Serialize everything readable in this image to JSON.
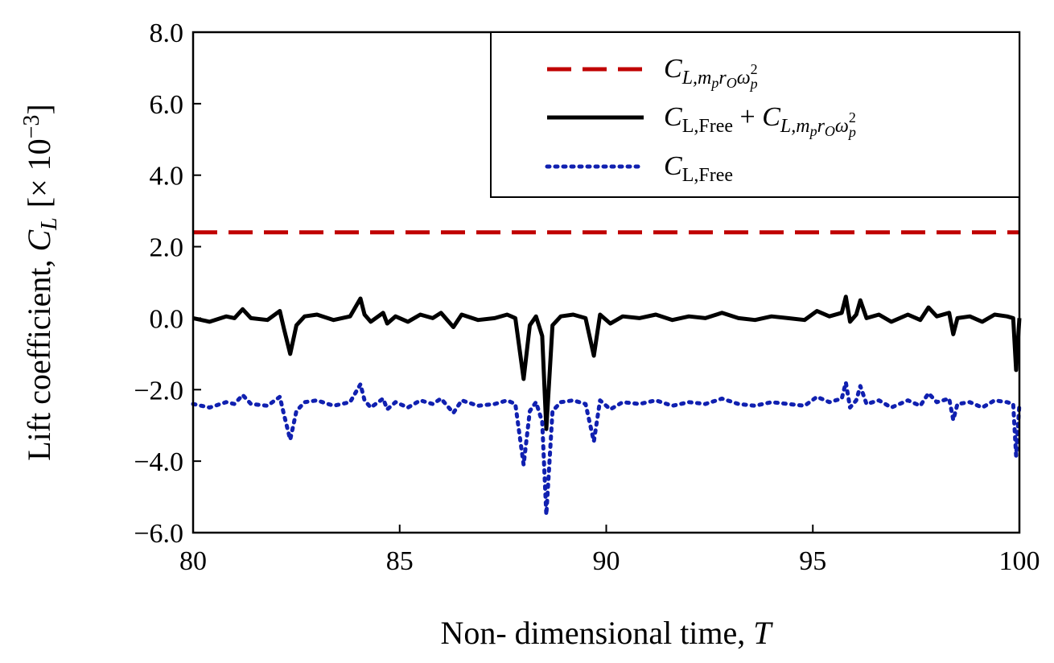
{
  "chart_data": {
    "type": "line",
    "xlabel": "Non- dimensional time, ",
    "xlabel_symbol": "T",
    "ylabel": "Lift coefficient, ",
    "ylabel_symbol": "C",
    "ylabel_sub": "L",
    "ylabel_scale": "[× 10",
    "ylabel_scale_exp": "−3",
    "ylabel_scale_close": "]",
    "xlim": [
      80,
      100
    ],
    "ylim": [
      -6.0,
      8.0
    ],
    "xticks": [
      {
        "value": 80,
        "label": "80"
      },
      {
        "value": 85,
        "label": "85"
      },
      {
        "value": 90,
        "label": "90"
      },
      {
        "value": 95,
        "label": "95"
      },
      {
        "value": 100,
        "label": "100"
      }
    ],
    "yticks": [
      {
        "value": 8,
        "label": "8.0"
      },
      {
        "value": 6,
        "label": "6.0"
      },
      {
        "value": 4,
        "label": "4.0"
      },
      {
        "value": 2,
        "label": "2.0"
      },
      {
        "value": 0,
        "label": "0.0"
      },
      {
        "value": -2,
        "label": "−2.0"
      },
      {
        "value": -4,
        "label": "−4.0"
      },
      {
        "value": -6,
        "label": "−6.0"
      }
    ],
    "legend": {
      "position": "top-right",
      "entries": [
        {
          "series": "CL_mprw",
          "sym": "C",
          "sub": "L,m",
          "sub2": "p",
          "sub3": "r",
          "sub4": "O",
          "sub5": "ω",
          "sub6": "p",
          "sup6": "2"
        },
        {
          "series": "CL_total",
          "sym": "C",
          "sub": "L,Free",
          "plus": " + ",
          "sym2": "C",
          "sub2": "L,m",
          "sub3": "p",
          "sub4": "r",
          "sub5": "O",
          "sub6": "ω",
          "sub7": "p",
          "sup7": "2"
        },
        {
          "series": "CL_free",
          "sym": "C",
          "sub": "L,Free"
        }
      ]
    },
    "series": [
      {
        "id": "CL_mprw",
        "name": "CL,mp rO ωp^2",
        "color": "#c00000",
        "style": "dashed",
        "x": [
          80,
          100
        ],
        "y": [
          2.4,
          2.4
        ]
      },
      {
        "id": "CL_total",
        "name": "CL,Free + CL,mp rO ωp^2",
        "color": "#000000",
        "style": "solid",
        "x": [
          80.0,
          80.4,
          80.8,
          81.0,
          81.2,
          81.4,
          81.8,
          82.1,
          82.2,
          82.35,
          82.5,
          82.7,
          83.0,
          83.4,
          83.8,
          84.05,
          84.15,
          84.3,
          84.6,
          84.7,
          84.9,
          85.2,
          85.5,
          85.8,
          86.0,
          86.3,
          86.5,
          86.9,
          87.3,
          87.6,
          87.8,
          88.0,
          88.15,
          88.3,
          88.45,
          88.55,
          88.7,
          88.9,
          89.2,
          89.5,
          89.7,
          89.85,
          90.1,
          90.4,
          90.8,
          91.2,
          91.6,
          92.0,
          92.4,
          92.8,
          93.2,
          93.6,
          94.0,
          94.4,
          94.8,
          95.1,
          95.4,
          95.7,
          95.8,
          95.9,
          96.05,
          96.15,
          96.3,
          96.6,
          96.9,
          97.3,
          97.6,
          97.8,
          98.0,
          98.3,
          98.4,
          98.5,
          98.8,
          99.1,
          99.4,
          99.7,
          99.85,
          99.92,
          100.0
        ],
        "y": [
          0.0,
          -0.1,
          0.05,
          0.0,
          0.25,
          0.0,
          -0.05,
          0.2,
          -0.3,
          -1.0,
          -0.2,
          0.05,
          0.1,
          -0.05,
          0.05,
          0.55,
          0.1,
          -0.1,
          0.15,
          -0.15,
          0.05,
          -0.1,
          0.1,
          0.0,
          0.15,
          -0.25,
          0.1,
          -0.05,
          0.0,
          0.1,
          0.0,
          -1.7,
          -0.2,
          0.05,
          -0.5,
          -3.1,
          -0.2,
          0.05,
          0.1,
          0.0,
          -1.05,
          0.1,
          -0.15,
          0.05,
          0.0,
          0.1,
          -0.05,
          0.05,
          0.0,
          0.15,
          0.0,
          -0.05,
          0.05,
          0.0,
          -0.05,
          0.2,
          0.05,
          0.15,
          0.6,
          -0.1,
          0.1,
          0.5,
          0.0,
          0.1,
          -0.1,
          0.1,
          -0.05,
          0.3,
          0.05,
          0.15,
          -0.45,
          0.0,
          0.05,
          -0.1,
          0.1,
          0.05,
          0.0,
          -1.45,
          0.0
        ]
      },
      {
        "id": "CL_free",
        "name": "CL,Free",
        "color": "#1020b0",
        "style": "dotted",
        "x": [
          80.0,
          80.4,
          80.8,
          81.0,
          81.2,
          81.4,
          81.8,
          82.1,
          82.2,
          82.35,
          82.5,
          82.7,
          83.0,
          83.4,
          83.8,
          84.05,
          84.15,
          84.3,
          84.6,
          84.7,
          84.9,
          85.2,
          85.5,
          85.8,
          86.0,
          86.3,
          86.5,
          86.9,
          87.3,
          87.6,
          87.8,
          88.0,
          88.15,
          88.3,
          88.45,
          88.55,
          88.7,
          88.9,
          89.2,
          89.5,
          89.7,
          89.85,
          90.1,
          90.4,
          90.8,
          91.2,
          91.6,
          92.0,
          92.4,
          92.8,
          93.2,
          93.6,
          94.0,
          94.4,
          94.8,
          95.1,
          95.4,
          95.7,
          95.8,
          95.9,
          96.05,
          96.15,
          96.3,
          96.6,
          96.9,
          97.3,
          97.6,
          97.8,
          98.0,
          98.3,
          98.4,
          98.5,
          98.8,
          99.1,
          99.4,
          99.7,
          99.85,
          99.92,
          100.0
        ],
        "y": [
          -2.4,
          -2.5,
          -2.35,
          -2.4,
          -2.15,
          -2.4,
          -2.45,
          -2.2,
          -2.7,
          -3.4,
          -2.6,
          -2.35,
          -2.3,
          -2.45,
          -2.35,
          -1.85,
          -2.3,
          -2.5,
          -2.25,
          -2.55,
          -2.35,
          -2.5,
          -2.3,
          -2.4,
          -2.25,
          -2.65,
          -2.3,
          -2.45,
          -2.4,
          -2.3,
          -2.4,
          -4.1,
          -2.6,
          -2.35,
          -2.9,
          -5.5,
          -2.6,
          -2.35,
          -2.3,
          -2.4,
          -3.45,
          -2.3,
          -2.55,
          -2.35,
          -2.4,
          -2.3,
          -2.45,
          -2.35,
          -2.4,
          -2.25,
          -2.4,
          -2.45,
          -2.35,
          -2.4,
          -2.45,
          -2.2,
          -2.35,
          -2.25,
          -1.8,
          -2.5,
          -2.3,
          -1.9,
          -2.4,
          -2.3,
          -2.5,
          -2.3,
          -2.45,
          -2.1,
          -2.35,
          -2.25,
          -2.85,
          -2.4,
          -2.35,
          -2.5,
          -2.3,
          -2.35,
          -2.4,
          -3.85,
          -2.4
        ]
      }
    ]
  }
}
